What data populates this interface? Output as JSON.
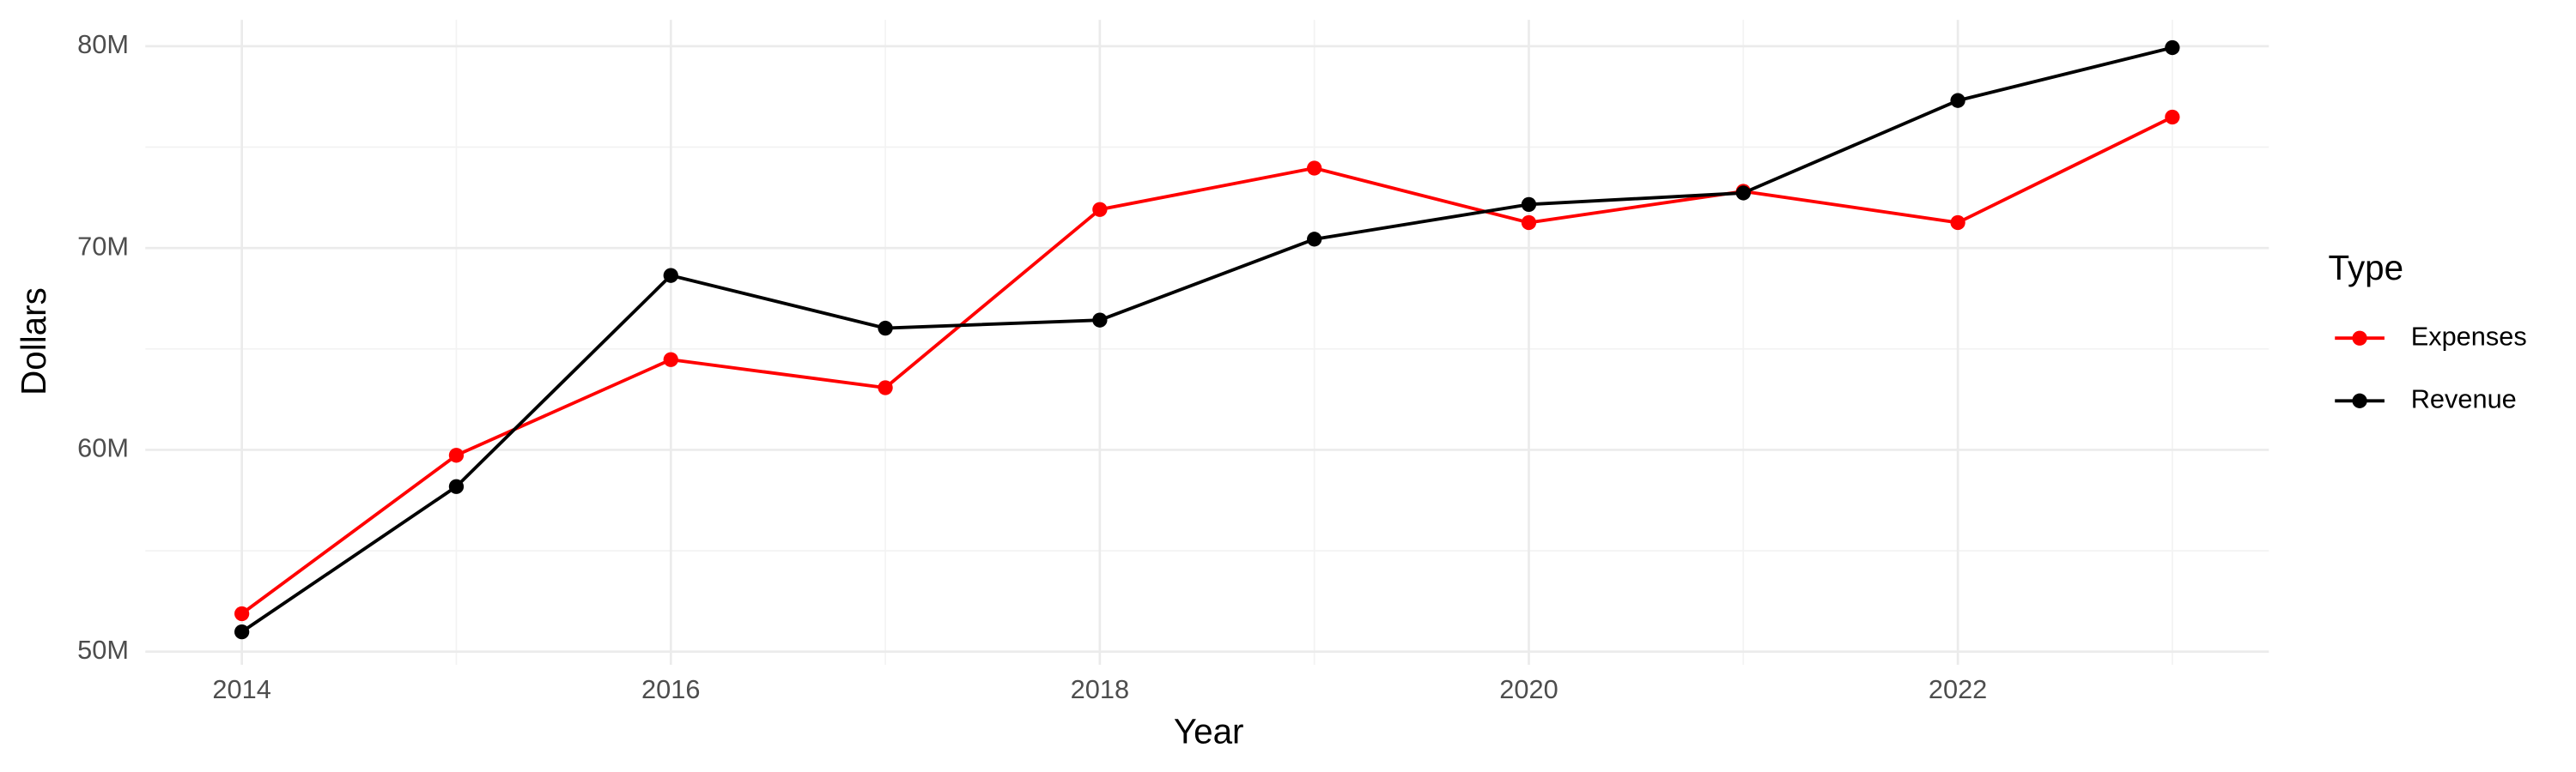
{
  "chart_data": {
    "type": "line",
    "x_label": "Year",
    "y_label": "Dollars",
    "x": [
      2014,
      2015,
      2016,
      2017,
      2018,
      2019,
      2020,
      2021,
      2022,
      2023
    ],
    "series": [
      {
        "name": "Expenses",
        "color": "#ff0000",
        "values": [
          51880000,
          59730000,
          64470000,
          63080000,
          71910000,
          73960000,
          71260000,
          72810000,
          71260000,
          76490000
        ]
      },
      {
        "name": "Revenue",
        "color": "#000000",
        "values": [
          50980000,
          58180000,
          68640000,
          66030000,
          66430000,
          70440000,
          72160000,
          72730000,
          77310000,
          79930000
        ]
      }
    ],
    "xlim": [
      2013.55,
      2023.45
    ],
    "xticks": [
      2014,
      2016,
      2018,
      2020,
      2022
    ],
    "ylim": [
      49350000,
      81310000
    ],
    "yticks": [
      {
        "value": 50000000,
        "label": "50M"
      },
      {
        "value": 60000000,
        "label": "60M"
      },
      {
        "value": 70000000,
        "label": "70M"
      },
      {
        "value": 80000000,
        "label": "80M"
      }
    ],
    "grid": true,
    "legend_title": "Type",
    "legend_position": "right"
  }
}
